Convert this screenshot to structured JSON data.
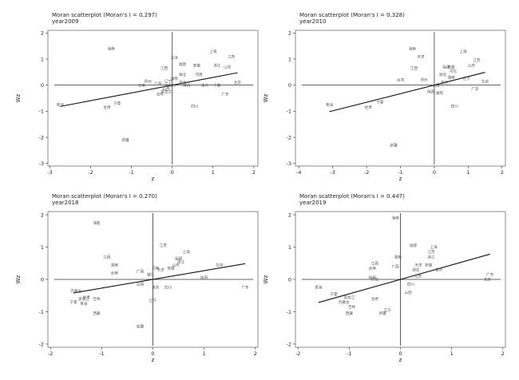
{
  "chart_data": [
    {
      "type": "scatter",
      "title": "Moran scatterplot (Moran's I = 0.297)",
      "subtitle": "year2009",
      "xlabel": "z",
      "ylabel": "Wz",
      "xlim": [
        -3.05,
        2.1
      ],
      "ylim": [
        -3.1,
        2.1
      ],
      "xticks": [
        "-3",
        "-2",
        "-1",
        "0",
        "1",
        "2"
      ],
      "yticks": [
        "-3",
        "-2",
        "-1",
        "0",
        "1",
        "2"
      ],
      "slope": 0.297,
      "points": [
        {
          "label": "海南",
          "x": -1.5,
          "y": 1.4
        },
        {
          "label": "天津",
          "x": 0.05,
          "y": 1.05
        },
        {
          "label": "上海",
          "x": 1.0,
          "y": 1.3
        },
        {
          "label": "江苏",
          "x": 1.45,
          "y": 1.1
        },
        {
          "label": "福建",
          "x": 0.25,
          "y": 0.8
        },
        {
          "label": "安徽",
          "x": 0.6,
          "y": 0.75
        },
        {
          "label": "浙江",
          "x": 1.1,
          "y": 0.75
        },
        {
          "label": "江西",
          "x": -0.2,
          "y": 0.65
        },
        {
          "label": "山东",
          "x": 1.35,
          "y": 0.7
        },
        {
          "label": "湖北",
          "x": 0.25,
          "y": 0.4
        },
        {
          "label": "河南",
          "x": 0.65,
          "y": 0.4
        },
        {
          "label": "湖南",
          "x": 0.05,
          "y": 0.25
        },
        {
          "label": "辽宁",
          "x": -0.1,
          "y": 0.15
        },
        {
          "label": "贵州",
          "x": -0.6,
          "y": 0.15
        },
        {
          "label": "云南",
          "x": -0.75,
          "y": 0.0
        },
        {
          "label": "广西",
          "x": -0.35,
          "y": 0.05
        },
        {
          "label": "河北",
          "x": 0.25,
          "y": 0.1
        },
        {
          "label": "内蒙古",
          "x": -0.05,
          "y": 0.0
        },
        {
          "label": "陕西",
          "x": 0.35,
          "y": 0.0
        },
        {
          "label": "重庆",
          "x": 0.8,
          "y": 0.0
        },
        {
          "label": "宁夏",
          "x": 1.1,
          "y": 0.0
        },
        {
          "label": "北京",
          "x": 1.6,
          "y": 0.1
        },
        {
          "label": "山西",
          "x": -0.15,
          "y": -0.15
        },
        {
          "label": "黑龙江",
          "x": -0.15,
          "y": -0.25
        },
        {
          "label": "吉林",
          "x": -0.3,
          "y": -0.35
        },
        {
          "label": "广东",
          "x": 1.3,
          "y": -0.35
        },
        {
          "label": "青海",
          "x": -2.75,
          "y": -0.75
        },
        {
          "label": "宁夏",
          "x": -1.35,
          "y": -0.7
        },
        {
          "label": "甘肃",
          "x": -1.6,
          "y": -0.85
        },
        {
          "label": "四川",
          "x": 0.55,
          "y": -0.8
        },
        {
          "label": "新疆",
          "x": -1.15,
          "y": -2.1
        }
      ]
    },
    {
      "type": "scatter",
      "title": "Moran scatterplot (Moran's I = 0.328)",
      "subtitle": "year2010",
      "xlabel": "z",
      "ylabel": "Wz",
      "xlim": [
        -4.1,
        2.1
      ],
      "ylim": [
        -3.1,
        2.1
      ],
      "xticks": [
        "-4",
        "-3",
        "-2",
        "-1",
        "0",
        "1",
        "2"
      ],
      "yticks": [
        "-3",
        "-2",
        "-1",
        "0",
        "1",
        "2"
      ],
      "slope": 0.328,
      "points": [
        {
          "label": "海南",
          "x": -0.65,
          "y": 1.4
        },
        {
          "label": "上海",
          "x": 0.85,
          "y": 1.3
        },
        {
          "label": "天津",
          "x": -0.4,
          "y": 1.1
        },
        {
          "label": "江苏",
          "x": 1.25,
          "y": 0.95
        },
        {
          "label": "福建",
          "x": 0.35,
          "y": 0.7
        },
        {
          "label": "安徽",
          "x": 0.5,
          "y": 0.7
        },
        {
          "label": "山东",
          "x": 1.1,
          "y": 0.75
        },
        {
          "label": "江西",
          "x": -0.6,
          "y": 0.65
        },
        {
          "label": "河北",
          "x": 0.55,
          "y": 0.55
        },
        {
          "label": "湖北",
          "x": 0.25,
          "y": 0.4
        },
        {
          "label": "湖南",
          "x": 0.5,
          "y": 0.3
        },
        {
          "label": "辽宁",
          "x": 0.95,
          "y": 0.25
        },
        {
          "label": "北京",
          "x": 1.5,
          "y": 0.15
        },
        {
          "label": "台湾",
          "x": -1.0,
          "y": 0.2
        },
        {
          "label": "贵州",
          "x": -0.3,
          "y": 0.2
        },
        {
          "label": "重庆",
          "x": 0.3,
          "y": 0.1
        },
        {
          "label": "山西",
          "x": 0.05,
          "y": 0.0
        },
        {
          "label": "广东",
          "x": 1.2,
          "y": -0.15
        },
        {
          "label": "陕西",
          "x": -0.1,
          "y": -0.25
        },
        {
          "label": "湖南",
          "x": 0.15,
          "y": -0.3
        },
        {
          "label": "青海",
          "x": -3.1,
          "y": -0.75
        },
        {
          "label": "宁夏",
          "x": -1.6,
          "y": -0.65
        },
        {
          "label": "甘肃",
          "x": -1.95,
          "y": -0.85
        },
        {
          "label": "四川",
          "x": 0.6,
          "y": -0.8
        },
        {
          "label": "新疆",
          "x": -1.2,
          "y": -2.3
        }
      ]
    },
    {
      "type": "scatter",
      "title": "Moran scatterplot (Moran's I = 0.270)",
      "subtitle": "year2018",
      "xlabel": "z",
      "ylabel": "Wz",
      "xlim": [
        -2.05,
        2.05
      ],
      "ylim": [
        -2.1,
        2.1
      ],
      "xticks": [
        "-2",
        "-1",
        "0",
        "1",
        "2"
      ],
      "yticks": [
        "-2",
        "-1",
        "0",
        "1",
        "2"
      ],
      "slope": 0.27,
      "points": [
        {
          "label": "海南",
          "x": -1.1,
          "y": 1.75
        },
        {
          "label": "江苏",
          "x": 0.2,
          "y": 1.05
        },
        {
          "label": "上海",
          "x": 0.65,
          "y": 0.85
        },
        {
          "label": "福建",
          "x": 0.5,
          "y": 0.65
        },
        {
          "label": "浙江",
          "x": 0.55,
          "y": 0.55
        },
        {
          "label": "江西",
          "x": -0.9,
          "y": 0.7
        },
        {
          "label": "湖南",
          "x": -0.75,
          "y": 0.45
        },
        {
          "label": "北京",
          "x": 1.3,
          "y": 0.45
        },
        {
          "label": "山东",
          "x": 0.45,
          "y": 0.45
        },
        {
          "label": "安徽",
          "x": 0.35,
          "y": 0.35
        },
        {
          "label": "河南",
          "x": 0.05,
          "y": 0.35
        },
        {
          "label": "广西",
          "x": -0.25,
          "y": 0.25
        },
        {
          "label": "天津",
          "x": 0.15,
          "y": 0.3
        },
        {
          "label": "云南",
          "x": -0.75,
          "y": 0.2
        },
        {
          "label": "湖北",
          "x": -0.05,
          "y": 0.15
        },
        {
          "label": "陕西",
          "x": 1.0,
          "y": 0.05
        },
        {
          "label": "山西",
          "x": -0.25,
          "y": -0.15
        },
        {
          "label": "重庆",
          "x": 0.05,
          "y": -0.25
        },
        {
          "label": "四川",
          "x": 0.3,
          "y": -0.25
        },
        {
          "label": "广东",
          "x": 1.8,
          "y": -0.25
        },
        {
          "label": "内蒙古",
          "x": -1.5,
          "y": -0.35
        },
        {
          "label": "辽宁",
          "x": 0.0,
          "y": -0.65
        },
        {
          "label": "甘肃",
          "x": -1.3,
          "y": -0.55
        },
        {
          "label": "吉林",
          "x": -1.1,
          "y": -0.6
        },
        {
          "label": "黑龙江",
          "x": -1.35,
          "y": -0.6
        },
        {
          "label": "宁夏",
          "x": -1.55,
          "y": -0.7
        },
        {
          "label": "青海",
          "x": -1.35,
          "y": -0.75
        },
        {
          "label": "西藏",
          "x": -1.1,
          "y": -1.05
        },
        {
          "label": "新疆",
          "x": -0.25,
          "y": -1.45
        }
      ]
    },
    {
      "type": "scatter",
      "title": "Moran scatterplot (Moran's I = 0.447)",
      "subtitle": "year2019",
      "xlabel": "z",
      "ylabel": "Wz",
      "xlim": [
        -2.05,
        2.05
      ],
      "ylim": [
        -2.1,
        2.1
      ],
      "xticks": [
        "-2",
        "-1",
        "0",
        "1",
        "2"
      ],
      "yticks": [
        "-2",
        "-1",
        "0",
        "1",
        "2"
      ],
      "slope": 0.447,
      "points": [
        {
          "label": "海南",
          "x": -0.1,
          "y": 1.9
        },
        {
          "label": "福建",
          "x": 0.25,
          "y": 1.05
        },
        {
          "label": "上海",
          "x": 0.65,
          "y": 1.0
        },
        {
          "label": "江苏",
          "x": 0.6,
          "y": 0.85
        },
        {
          "label": "浙江",
          "x": 0.6,
          "y": 0.7
        },
        {
          "label": "湖南",
          "x": -0.05,
          "y": 0.7
        },
        {
          "label": "江西",
          "x": -0.5,
          "y": 0.5
        },
        {
          "label": "天津",
          "x": 0.35,
          "y": 0.45
        },
        {
          "label": "安徽",
          "x": 0.55,
          "y": 0.45
        },
        {
          "label": "广西",
          "x": -0.1,
          "y": 0.4
        },
        {
          "label": "湖北",
          "x": 0.3,
          "y": 0.3
        },
        {
          "label": "重庆",
          "x": 0.75,
          "y": 0.3
        },
        {
          "label": "云南",
          "x": -0.55,
          "y": 0.35
        },
        {
          "label": "山东",
          "x": 0.35,
          "y": 0.1
        },
        {
          "label": "广东",
          "x": 1.75,
          "y": 0.15
        },
        {
          "label": "北京",
          "x": 1.7,
          "y": 0.0
        },
        {
          "label": "河北",
          "x": -0.5,
          "y": 0.0
        },
        {
          "label": "陕西",
          "x": -0.55,
          "y": 0.05
        },
        {
          "label": "四川",
          "x": 0.2,
          "y": -0.15
        },
        {
          "label": "山西",
          "x": 0.15,
          "y": -0.4
        },
        {
          "label": "青海",
          "x": -1.6,
          "y": -0.25
        },
        {
          "label": "宁夏",
          "x": -1.3,
          "y": -0.45
        },
        {
          "label": "黑龙江",
          "x": -1.0,
          "y": -0.55
        },
        {
          "label": "甘肃",
          "x": -0.5,
          "y": -0.6
        },
        {
          "label": "内蒙古",
          "x": -1.1,
          "y": -0.7
        },
        {
          "label": "吉林",
          "x": -0.95,
          "y": -0.85
        },
        {
          "label": "辽宁",
          "x": -0.25,
          "y": -0.95
        },
        {
          "label": "新疆",
          "x": -0.35,
          "y": -1.05
        },
        {
          "label": "西藏",
          "x": -1.0,
          "y": -1.05
        }
      ]
    }
  ]
}
